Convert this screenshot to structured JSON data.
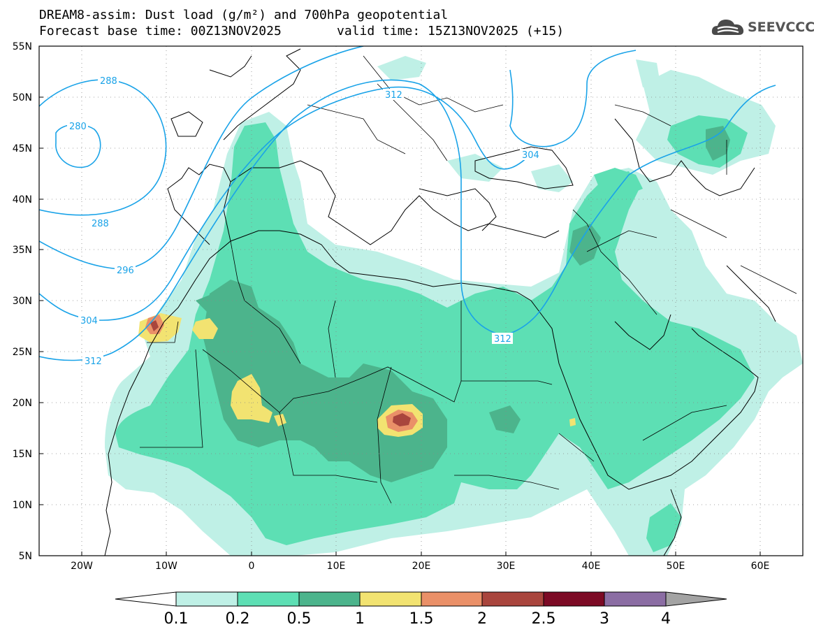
{
  "title": {
    "line1": "DREAM8-assim: Dust load (g/m²) and 700hPa geopotential",
    "line2": "Forecast base time: 00Z13NOV2025",
    "line2b": "valid time: 15Z13NOV2025 (+15)"
  },
  "logo": {
    "text": "SEEVCCC",
    "icon": "cloud-logo-icon"
  },
  "axes": {
    "lat_labels": [
      "55N",
      "50N",
      "45N",
      "40N",
      "35N",
      "30N",
      "25N",
      "20N",
      "15N",
      "10N",
      "5N"
    ],
    "lon_labels": [
      "20W",
      "10W",
      "0",
      "10E",
      "20E",
      "30E",
      "40E",
      "50E",
      "60E"
    ]
  },
  "contours": {
    "color": "#1aa3e8",
    "labels": [
      "288",
      "280",
      "312",
      "304",
      "288",
      "296",
      "304",
      "312",
      "312"
    ]
  },
  "colorbar": {
    "labels": [
      "0.1",
      "0.2",
      "0.5",
      "1",
      "1.5",
      "2",
      "2.5",
      "3",
      "4"
    ],
    "colors": [
      "#ffffff",
      "#bff0e6",
      "#5ddfb4",
      "#4cb48c",
      "#f2e371",
      "#ea9068",
      "#a9453d",
      "#7c0a25",
      "#8b6da3",
      "#a3a3a3"
    ]
  }
}
